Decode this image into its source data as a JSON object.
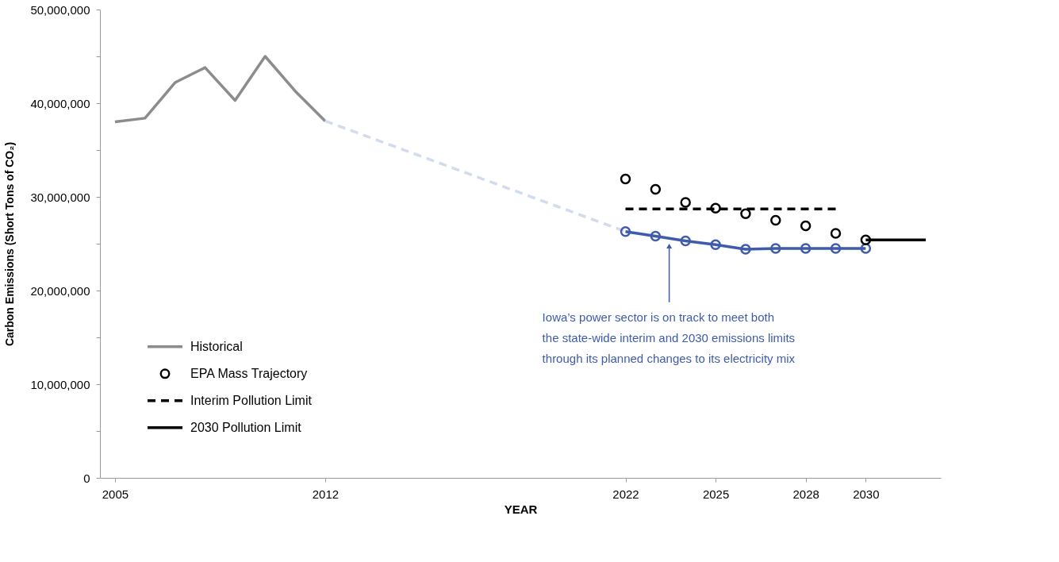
{
  "chart_data": {
    "type": "line",
    "xlabel": "YEAR",
    "ylabel": "Carbon Emissions  (Short Tons of CO₂)",
    "xlim": [
      2004.5,
      2032.5
    ],
    "xticks": [
      2005,
      2012,
      2022,
      2025,
      2028,
      2030
    ],
    "ylim": [
      0,
      50000000
    ],
    "yticks": [
      0,
      {
        "value": 5000000,
        "label": null
      },
      {
        "value": 10000000,
        "label": "10,000,000"
      },
      {
        "value": 15000000,
        "label": null
      },
      {
        "value": 20000000,
        "label": "20,000,000"
      },
      {
        "value": 25000000,
        "label": null
      },
      {
        "value": 30000000,
        "label": "30,000,000"
      },
      {
        "value": 35000000,
        "label": null
      },
      {
        "value": 40000000,
        "label": "40,000,000"
      },
      {
        "value": 45000000,
        "label": null
      },
      {
        "value": 50000000,
        "label": "50,000,000"
      }
    ],
    "grid": false,
    "legend": "bottom left",
    "series": [
      {
        "name": "Historical",
        "color": "#8c8c8c",
        "marker": "none",
        "line_style": "solid",
        "x": [
          2005,
          2006,
          2007,
          2008,
          2009,
          2010,
          2011,
          2012
        ],
        "values": [
          38000000,
          38400000,
          42200000,
          43800000,
          40300000,
          45000000,
          41300000,
          38100000
        ]
      },
      {
        "color": "#d3dbee",
        "marker": "none",
        "line_style": "dashed",
        "x": [
          2012,
          2022
        ],
        "values": [
          38100000,
          26300000
        ]
      },
      {
        "color": "#3f5bab",
        "marker": "circle",
        "line_style": "solid",
        "x": [
          2022,
          2023,
          2024,
          2025,
          2026,
          2027,
          2028,
          2029,
          2030
        ],
        "values": [
          26300000,
          25800000,
          25300000,
          24900000,
          24400000,
          24500000,
          24500000,
          24500000,
          24500000
        ]
      },
      {
        "name": "EPA Mass Trajectory",
        "type": "scatter",
        "color": "#000000",
        "marker": "circle",
        "x": [
          2022,
          2023,
          2024,
          2025,
          2026,
          2027,
          2028,
          2029,
          2030
        ],
        "values": [
          31900000,
          30800000,
          29400000,
          28800000,
          28200000,
          27500000,
          26900000,
          26100000,
          25400000
        ]
      },
      {
        "name": "Interim Pollution Limit",
        "color": "#000000",
        "marker": "none",
        "line_style": "dashed",
        "x": [
          2022,
          2029
        ],
        "values": [
          28700000,
          28700000
        ]
      },
      {
        "name": "2030 Pollution Limit",
        "color": "#000000",
        "marker": "none",
        "line_style": "solid",
        "x": [
          2030,
          2032
        ],
        "values": [
          25400000,
          25400000
        ]
      }
    ],
    "annotations": [
      "Iowa’s power sector is on track to meet both\nthe state-wide interim and 2030 emissions limits\nthrough its planned changes to its electricity mix"
    ]
  }
}
